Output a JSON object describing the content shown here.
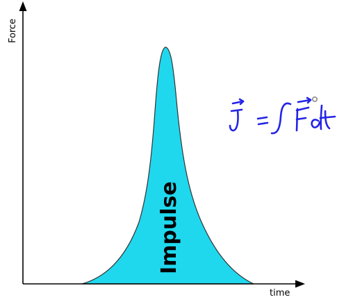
{
  "y_axis_label": "Force",
  "x_axis_label": "time",
  "area_label": "Impulse",
  "formula_icon": "handwritten-formula-J-equals-integral-F-dt",
  "colors": {
    "fill": "#1fd8ee",
    "curve": "#333333",
    "axes": "#000000",
    "ink": "#2323e6"
  }
}
